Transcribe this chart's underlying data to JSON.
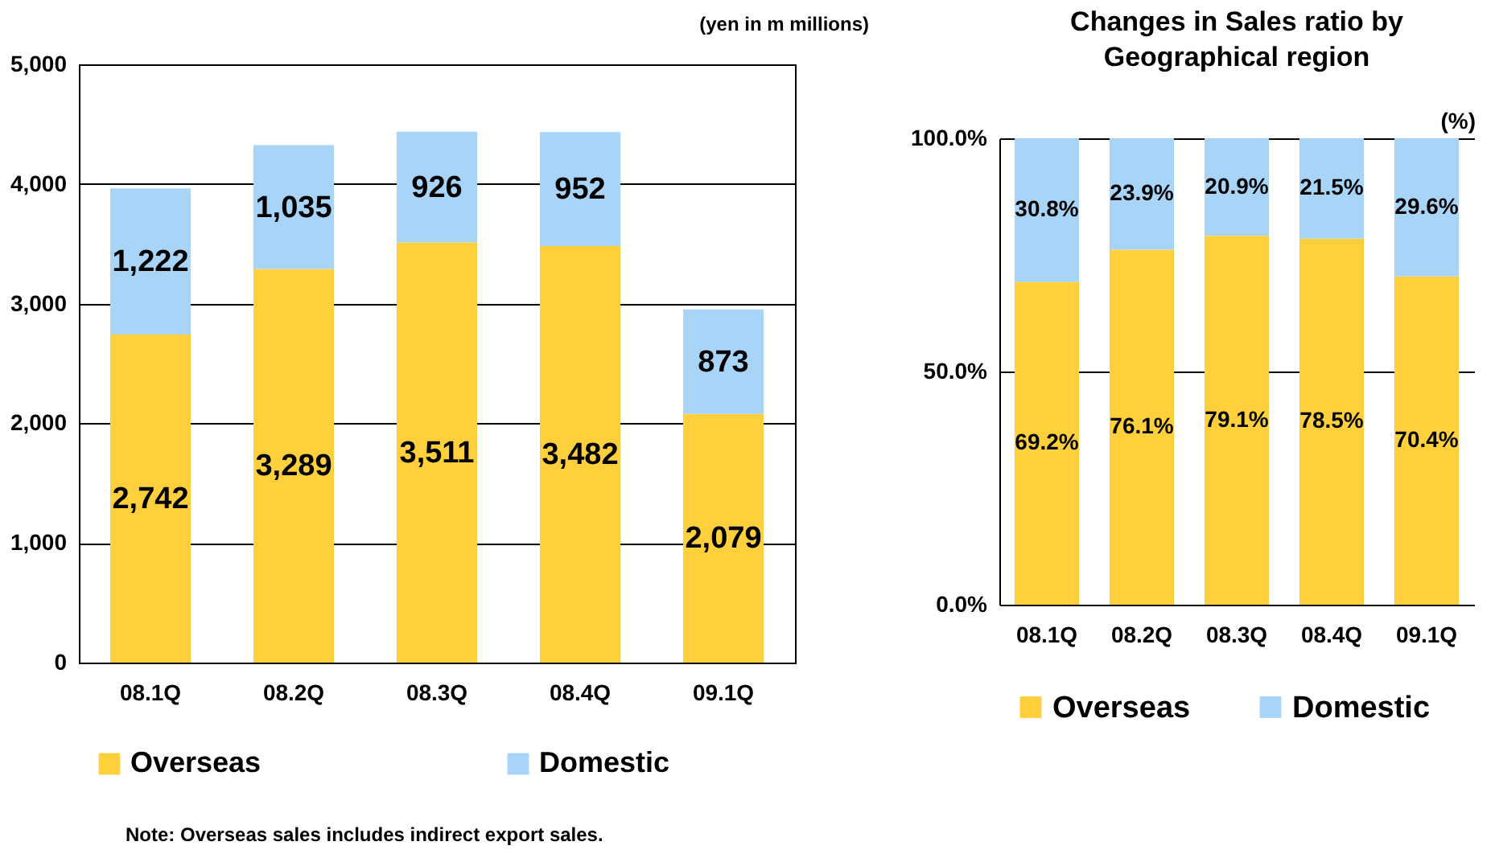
{
  "chart_data": [
    {
      "type": "bar",
      "stacked": true,
      "categories": [
        "08.1Q",
        "08.2Q",
        "08.3Q",
        "08.4Q",
        "09.1Q"
      ],
      "series": [
        {
          "name": "Overseas",
          "color": "#ffd03c",
          "values": [
            2742,
            3289,
            3511,
            3482,
            2079
          ],
          "value_labels": [
            "2,742",
            "3,289",
            "3,511",
            "3,482",
            "2,079"
          ]
        },
        {
          "name": "Domestic",
          "color": "#a8d4f7",
          "values": [
            1222,
            1035,
            926,
            952,
            873
          ],
          "value_labels": [
            "1,222",
            "1,035",
            "926",
            "952",
            "873"
          ]
        }
      ],
      "ylim": [
        0,
        5000
      ],
      "yticks": [
        {
          "value": 0,
          "label": "0"
        },
        {
          "value": 1000,
          "label": "1,000"
        },
        {
          "value": 2000,
          "label": "2,000"
        },
        {
          "value": 3000,
          "label": "3,000"
        },
        {
          "value": 4000,
          "label": "4,000"
        },
        {
          "value": 5000,
          "label": "5,000"
        }
      ],
      "grid": "y",
      "legend": "bottom",
      "annotations": [
        "(yen in m millions)",
        "Note: Overseas sales includes indirect export sales."
      ]
    },
    {
      "type": "bar",
      "stacked": true,
      "title": "Changes in Sales ratio by Geographical region",
      "categories": [
        "08.1Q",
        "08.2Q",
        "08.3Q",
        "08.4Q",
        "09.1Q"
      ],
      "series": [
        {
          "name": "Overseas",
          "color": "#ffd03c",
          "values": [
            69.2,
            76.1,
            79.1,
            78.5,
            70.4
          ],
          "value_labels": [
            "69.2%",
            "76.1%",
            "79.1%",
            "78.5%",
            "70.4%"
          ]
        },
        {
          "name": "Domestic",
          "color": "#a8d4f7",
          "values": [
            30.8,
            23.9,
            20.9,
            21.5,
            29.6
          ],
          "value_labels": [
            "30.8%",
            "23.9%",
            "20.9%",
            "21.5%",
            "29.6%"
          ]
        }
      ],
      "ylim": [
        0,
        100
      ],
      "yticks": [
        {
          "value": 0,
          "label": "0.0%"
        },
        {
          "value": 50,
          "label": "50.0%"
        },
        {
          "value": 100,
          "label": "100.0%"
        }
      ],
      "grid": "y",
      "legend": "bottom",
      "annotations": [
        "(%)"
      ]
    }
  ]
}
